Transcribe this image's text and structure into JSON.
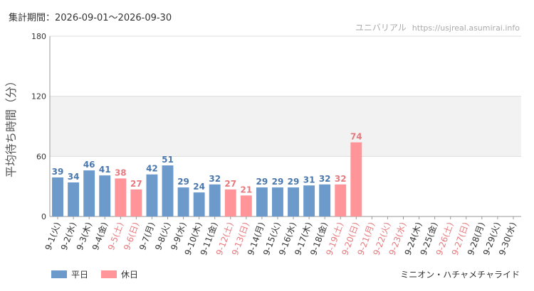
{
  "header": {
    "period_label": "集計期間：2026-09-01〜2026-09-30",
    "site_name": "ユニバリアル",
    "site_url": "https://usjreal.asumirai.info"
  },
  "footer": {
    "attraction": "ミニオン・ハチャメチャライド"
  },
  "legend": {
    "weekday": "平日",
    "holiday": "休日"
  },
  "colors": {
    "weekday": "#6b9acb",
    "holiday": "#ff9598",
    "weekday_text": "#4a78ad",
    "holiday_text": "#e77a7e",
    "band": "#f2f2f2",
    "grid": "#dddddd"
  },
  "chart_data": {
    "type": "bar",
    "ylabel": "平均待ち時間（分）",
    "ylim": [
      0,
      180
    ],
    "yticks": [
      0,
      60,
      120,
      180
    ],
    "shaded_band": [
      60,
      120
    ],
    "categories": [
      "9-1(火)",
      "9-2(水)",
      "9-3(木)",
      "9-4(金)",
      "9-5(土)",
      "9-6(日)",
      "9-7(月)",
      "9-8(火)",
      "9-9(水)",
      "9-10(木)",
      "9-11(金)",
      "9-12(土)",
      "9-13(日)",
      "9-14(月)",
      "9-15(火)",
      "9-16(水)",
      "9-17(木)",
      "9-18(金)",
      "9-19(土)",
      "9-20(日)",
      "9-21(月)",
      "9-22(火)",
      "9-23(水)",
      "9-24(木)",
      "9-25(金)",
      "9-26(土)",
      "9-27(日)",
      "9-28(月)",
      "9-29(火)",
      "9-30(水)"
    ],
    "values": [
      39,
      34,
      46,
      41,
      38,
      27,
      42,
      51,
      29,
      24,
      32,
      27,
      21,
      29,
      29,
      29,
      31,
      32,
      32,
      74,
      null,
      null,
      null,
      null,
      null,
      null,
      null,
      null,
      null,
      null
    ],
    "day_type": [
      "weekday",
      "weekday",
      "weekday",
      "weekday",
      "holiday",
      "holiday",
      "weekday",
      "weekday",
      "weekday",
      "weekday",
      "weekday",
      "holiday",
      "holiday",
      "weekday",
      "weekday",
      "weekday",
      "weekday",
      "weekday",
      "holiday",
      "holiday",
      "holiday",
      "holiday",
      "holiday",
      "weekday",
      "weekday",
      "holiday",
      "holiday",
      "weekday",
      "weekday",
      "weekday"
    ]
  }
}
